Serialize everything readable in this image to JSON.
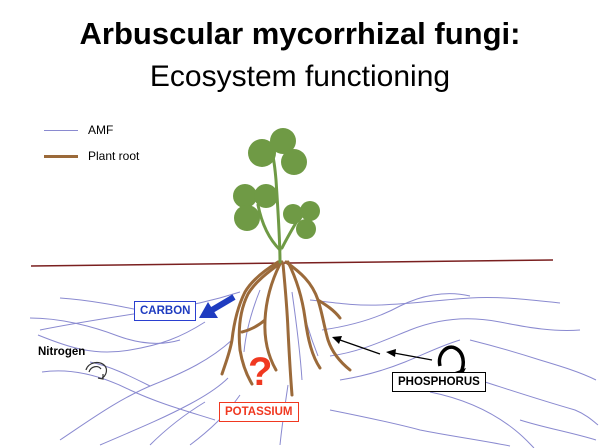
{
  "title": {
    "line1": "Arbuscular mycorrhizal fungi:",
    "line2": "Ecosystem functioning"
  },
  "legend": {
    "amf": {
      "label": "AMF",
      "color": "#8a8ad0"
    },
    "root": {
      "label": "Plant root",
      "color": "#9b6a3a"
    }
  },
  "nutrients": {
    "carbon": {
      "label": "CARBON",
      "color": "#1f3cc0"
    },
    "phosphorus": {
      "label": "PHOSPHORUS",
      "color": "#000000"
    },
    "potassium": {
      "label": "POTASSIUM",
      "color": "#f03820"
    },
    "nitrogen": {
      "label": "Nitrogen",
      "color": "#000000"
    }
  },
  "question_mark": "?",
  "colors": {
    "leaf": "#6f9a45",
    "stem": "#6f9a45",
    "ground": "#7a1f1f",
    "root": "#9b6a3a",
    "hyphae": "#8a8ad0"
  }
}
